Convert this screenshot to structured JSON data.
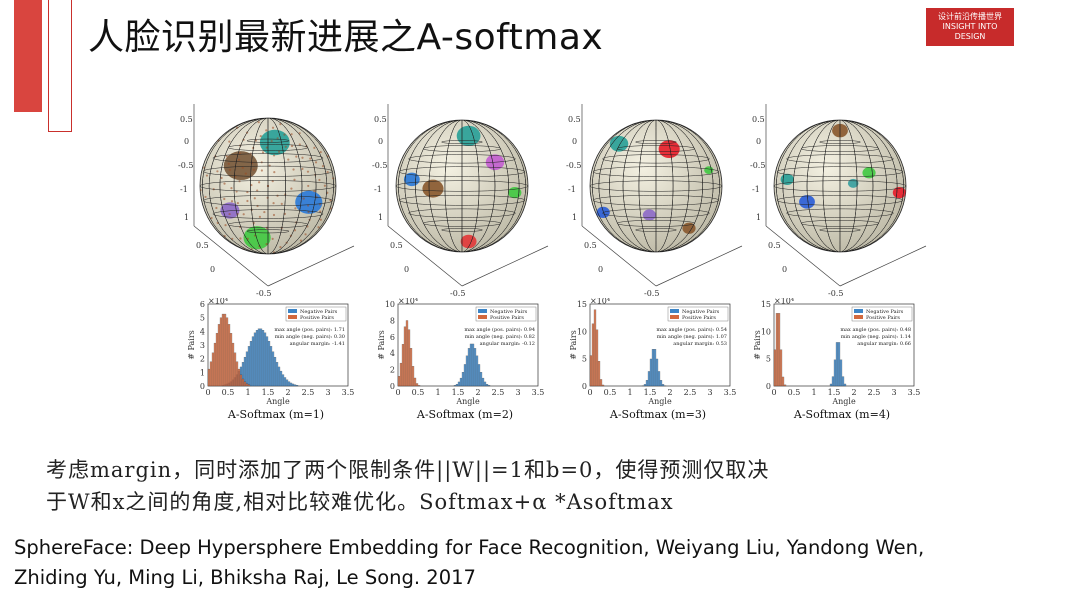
{
  "title": "人脸识别最新进展之A-softmax",
  "logo": {
    "line1": "设计前沿传播世界",
    "line2": "INSIGHT INTO DESIGN"
  },
  "colors": {
    "accent": "#d9453f",
    "negative": "#3d85c6",
    "positive": "#d2693e"
  },
  "chart_data": [
    {
      "type": "histogram",
      "caption": "A-Softmax (m=1)",
      "xlabel": "Angle",
      "ylabel": "# Pairs",
      "legend": [
        "Negative Pairs",
        "Positive Pairs"
      ],
      "stats": [
        "max angle (pos. pairs): 1.71",
        "min angle (neg. pairs): 0.30",
        "angular margin: -1.41"
      ],
      "ytick_labels": [
        "0",
        "1",
        "2",
        "3",
        "4",
        "5",
        "6"
      ],
      "xtick_labels": [
        "0",
        "0.5",
        "1",
        "1.5",
        "2",
        "2.5",
        "3",
        "3.5"
      ],
      "yscale_label": "×10⁴",
      "series": [
        {
          "name": "Negative Pairs",
          "center": 1.3,
          "spread": 0.32,
          "peak": 4.2
        },
        {
          "name": "Positive Pairs",
          "center": 0.4,
          "spread": 0.22,
          "peak": 5.3
        }
      ],
      "xlim": [
        0,
        3.5
      ],
      "ylim": [
        0,
        6
      ]
    },
    {
      "type": "histogram",
      "caption": "A-Softmax (m=2)",
      "xlabel": "Angle",
      "ylabel": "# Pairs",
      "legend": [
        "Negative Pairs",
        "Positive Pairs"
      ],
      "stats": [
        "max angle (pos. pairs): 0.94",
        "min angle (neg. pairs): 0.82",
        "angular margin: -0.12"
      ],
      "ytick_labels": [
        "0",
        "2",
        "4",
        "6",
        "8",
        "10"
      ],
      "xtick_labels": [
        "0",
        "0.5",
        "1",
        "1.5",
        "2",
        "2.5",
        "3",
        "3.5"
      ],
      "yscale_label": "×10⁴",
      "series": [
        {
          "name": "Negative Pairs",
          "center": 1.85,
          "spread": 0.15,
          "peak": 5.2
        },
        {
          "name": "Positive Pairs",
          "center": 0.22,
          "spread": 0.1,
          "peak": 8.0
        }
      ],
      "xlim": [
        0,
        3.5
      ],
      "ylim": [
        0,
        10
      ]
    },
    {
      "type": "histogram",
      "caption": "A-Softmax (m=3)",
      "xlabel": "Angle",
      "ylabel": "# Pairs",
      "legend": [
        "Negative Pairs",
        "Positive Pairs"
      ],
      "stats": [
        "max angle (pos. pairs): 0.54",
        "min angle (neg. pairs): 1.07",
        "angular margin: 0.53"
      ],
      "ytick_labels": [
        "0",
        "5",
        "10",
        "15"
      ],
      "xtick_labels": [
        "0",
        "0.5",
        "1",
        "1.5",
        "2",
        "2.5",
        "3",
        "3.5"
      ],
      "yscale_label": "×10⁴",
      "series": [
        {
          "name": "Negative Pairs",
          "center": 1.6,
          "spread": 0.09,
          "peak": 7.0
        },
        {
          "name": "Positive Pairs",
          "center": 0.12,
          "spread": 0.07,
          "peak": 14.0
        }
      ],
      "xlim": [
        0,
        3.5
      ],
      "ylim": [
        0,
        15
      ]
    },
    {
      "type": "histogram",
      "caption": "A-Softmax (m=4)",
      "xlabel": "Angle",
      "ylabel": "# Pairs",
      "legend": [
        "Negative Pairs",
        "Positive Pairs"
      ],
      "stats": [
        "max angle (pos. pairs): 0.48",
        "min angle (neg. pairs): 1.14",
        "angular margin: 0.66"
      ],
      "ytick_labels": [
        "0",
        "5",
        "10",
        "15"
      ],
      "xtick_labels": [
        "0",
        "0.5",
        "1",
        "1.5",
        "2",
        "2.5",
        "3",
        "3.5"
      ],
      "yscale_label": "×10⁴",
      "series": [
        {
          "name": "Negative Pairs",
          "center": 1.6,
          "spread": 0.07,
          "peak": 8.5
        },
        {
          "name": "Positive Pairs",
          "center": 0.1,
          "spread": 0.06,
          "peak": 14.5
        }
      ],
      "xlim": [
        0,
        3.5
      ],
      "ylim": [
        0,
        15
      ]
    }
  ],
  "sphere_tick_labels": [
    "0.5",
    "0",
    "-0.5",
    "-1",
    "1",
    "0.5",
    "0",
    "-0.5"
  ],
  "body_line1": "考虑margin，同时添加了两个限制条件||W||=1和b=0，使得预测仅取决",
  "body_line2": "于W和x之间的角度,相对比较难优化。Softmax+α *Asoftmax",
  "reference_line1": "SphereFace: Deep Hypersphere Embedding for Face Recognition, Weiyang Liu, Yandong Wen,",
  "reference_line2": "Zhiding Yu, Ming Li, Bhiksha Raj, Le Song. 2017"
}
